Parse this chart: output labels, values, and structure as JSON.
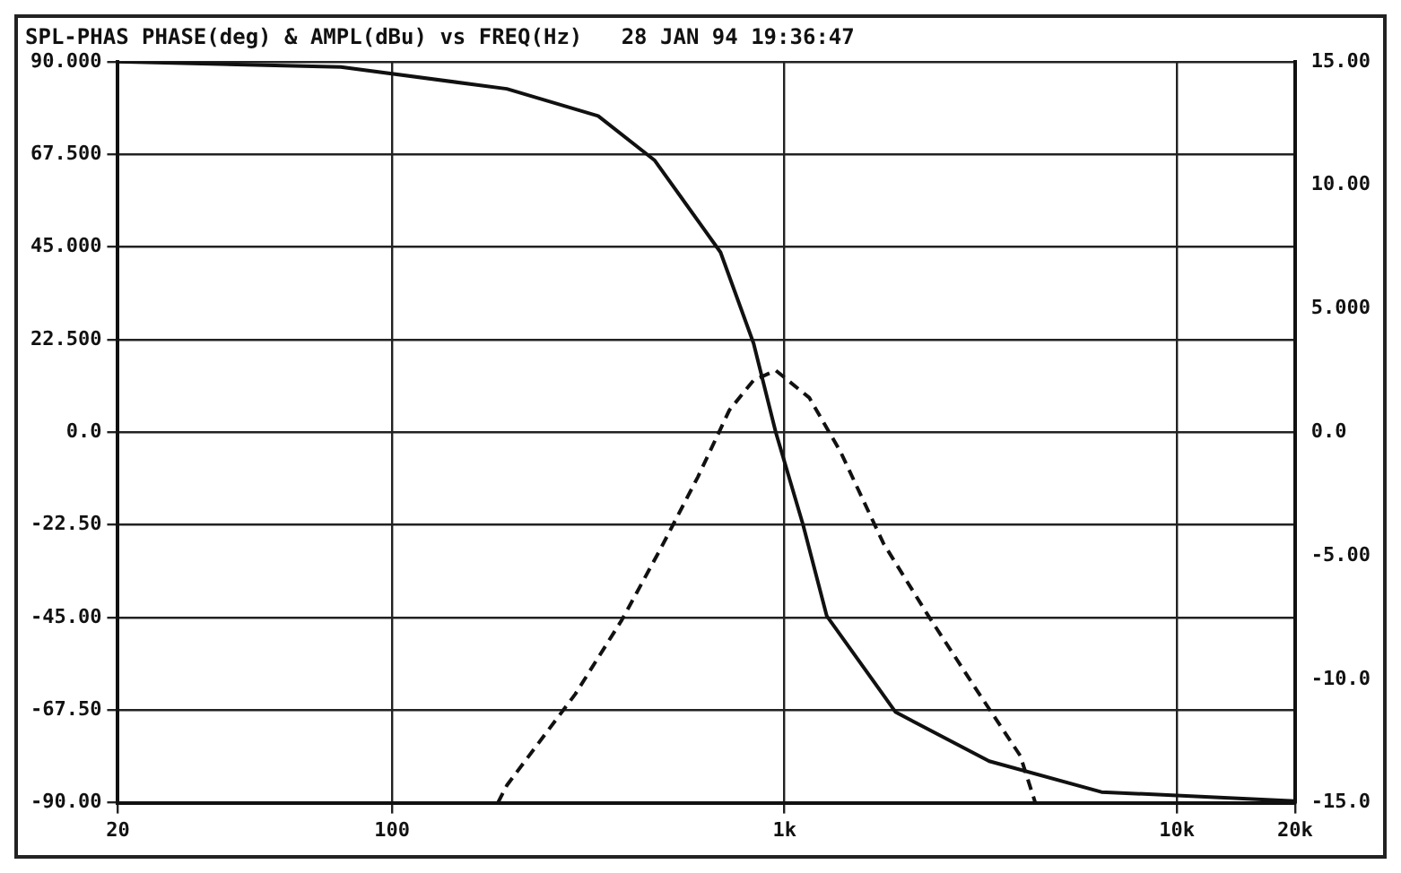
{
  "chart_data": {
    "type": "line",
    "title": "SPL-PHAS PHASE(deg) & AMPL(dBu) vs FREQ(Hz)   28 JAN 94 19:36:47",
    "series": [
      {
        "color": "#111111",
        "line_style": "solid",
        "axis": "y",
        "x": [
          20,
          74,
          196,
          335,
          467,
          687,
          834,
          950,
          1115,
          1281,
          1920,
          3325,
          6425,
          20000
        ],
        "values": [
          90,
          88.7,
          83.4,
          76.8,
          66,
          43.7,
          21.6,
          0,
          -22.5,
          -44.6,
          -68,
          -79.9,
          -87.4,
          -89.6
        ]
      },
      {
        "color": "#111111",
        "line_style": "dashed",
        "axis": "y2",
        "x": [
          186,
          196,
          293,
          385,
          484,
          602,
          724,
          834,
          950,
          1156,
          1390,
          1787,
          2319,
          3078,
          3990,
          4357
        ],
        "values": [
          -15,
          -14.3,
          -10.6,
          -7.6,
          -4.7,
          -1.8,
          0.9,
          2.1,
          2.5,
          1.4,
          -0.8,
          -4.5,
          -7.4,
          -10.4,
          -13.1,
          -15
        ]
      }
    ],
    "log": "x",
    "xlim": [
      20,
      20000
    ],
    "xticks": [
      20,
      100,
      {
        "value": 1000,
        "label": "1k"
      },
      {
        "value": 10000,
        "label": "10k"
      },
      {
        "value": 20000,
        "label": "20k"
      }
    ],
    "ylim": [
      -90,
      90
    ],
    "yticks": [
      {
        "value": -90,
        "label": "-90.00"
      },
      {
        "value": -67.5,
        "label": "-67.50"
      },
      {
        "value": -45,
        "label": "-45.00"
      },
      {
        "value": -22.5,
        "label": "-22.50"
      },
      {
        "value": 0,
        "label": "0.0"
      },
      {
        "value": 22.5,
        "label": "22.500"
      },
      {
        "value": 45,
        "label": "45.000"
      },
      {
        "value": 67.5,
        "label": "67.500"
      },
      {
        "value": 90,
        "label": "90.000"
      }
    ],
    "y2lim": [
      -15,
      15
    ],
    "y2ticks": [
      {
        "value": -15,
        "label": "-15.0"
      },
      {
        "value": -10,
        "label": "-10.0"
      },
      {
        "value": -5,
        "label": "-5.00"
      },
      {
        "value": 0,
        "label": "0.0"
      },
      {
        "value": 5,
        "label": "5.000"
      },
      {
        "value": 10,
        "label": "10.00"
      },
      {
        "value": 15,
        "label": "15.00"
      }
    ],
    "grid": true,
    "legend": false,
    "marker": "none"
  }
}
